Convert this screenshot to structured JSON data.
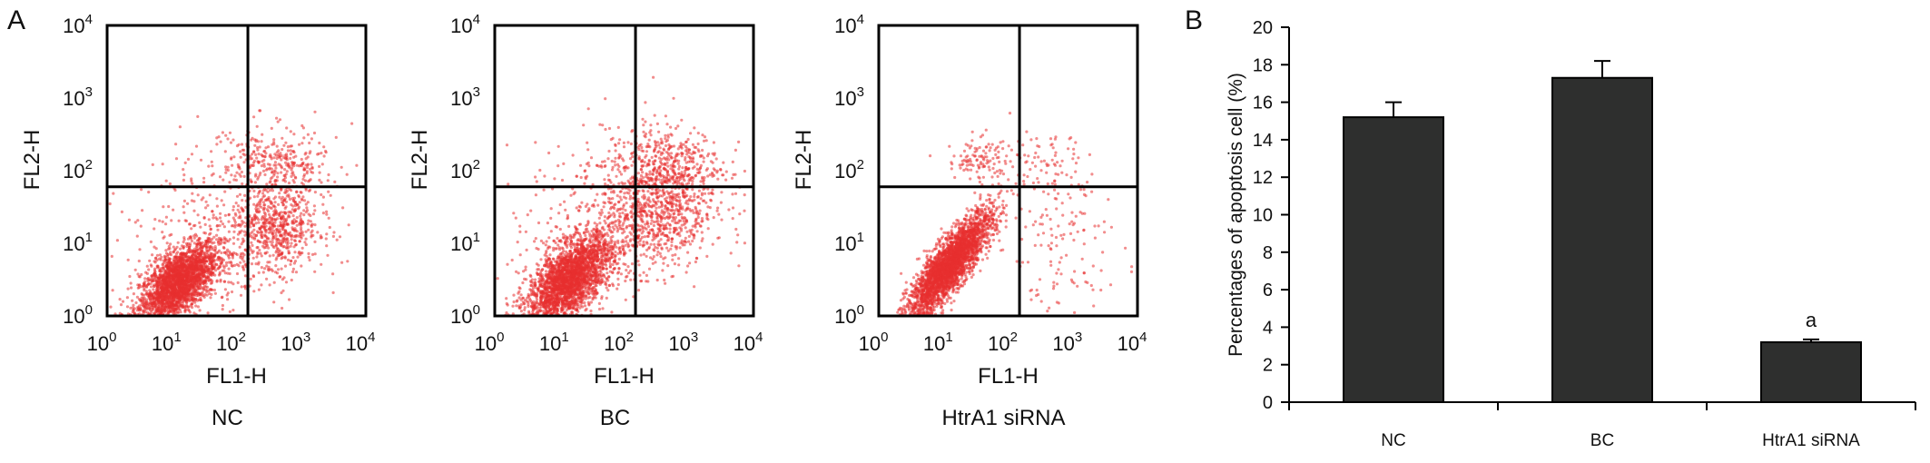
{
  "panel_labels": [
    "A",
    "B"
  ],
  "chart_data": [
    {
      "type": "scatter",
      "caption": "NC",
      "xlabel": "FL1-H",
      "ylabel": "FL2-H",
      "scale": "log",
      "xlim": [
        1,
        10000
      ],
      "ylim": [
        1,
        10000
      ],
      "tick_bases": [
        "10",
        "10",
        "10",
        "10",
        "10"
      ],
      "tick_exps": [
        "0",
        "1",
        "2",
        "3",
        "4"
      ],
      "quadrant_gate": {
        "x": 150,
        "y": 60
      },
      "point_color": "#e8302f",
      "clusters": [
        {
          "cx": 1.1,
          "cy": 0.45,
          "sx": 0.3,
          "sy": 0.28,
          "corr": 0.6,
          "n": 2600
        },
        {
          "cx": 2.6,
          "cy": 1.2,
          "sx": 0.35,
          "sy": 0.32,
          "corr": 0.1,
          "n": 650
        },
        {
          "cx": 2.6,
          "cy": 2.1,
          "sx": 0.4,
          "sy": 0.22,
          "corr": 0.0,
          "n": 260
        },
        {
          "cx": 1.8,
          "cy": 1.2,
          "sx": 0.8,
          "sy": 0.7,
          "corr": 0.3,
          "n": 400
        }
      ]
    },
    {
      "type": "scatter",
      "caption": "BC",
      "xlabel": "FL1-H",
      "ylabel": "FL2-H",
      "scale": "log",
      "xlim": [
        1,
        10000
      ],
      "ylim": [
        1,
        10000
      ],
      "tick_bases": [
        "10",
        "10",
        "10",
        "10",
        "10"
      ],
      "tick_exps": [
        "0",
        "1",
        "2",
        "3",
        "4"
      ],
      "quadrant_gate": {
        "x": 150,
        "y": 60
      },
      "point_color": "#e8302f",
      "clusters": [
        {
          "cx": 1.15,
          "cy": 0.5,
          "sx": 0.32,
          "sy": 0.3,
          "corr": 0.6,
          "n": 2600
        },
        {
          "cx": 2.5,
          "cy": 1.4,
          "sx": 0.45,
          "sy": 0.38,
          "corr": 0.1,
          "n": 750
        },
        {
          "cx": 2.6,
          "cy": 2.1,
          "sx": 0.45,
          "sy": 0.25,
          "corr": 0.0,
          "n": 380
        },
        {
          "cx": 1.8,
          "cy": 1.3,
          "sx": 0.8,
          "sy": 0.7,
          "corr": 0.3,
          "n": 400
        }
      ]
    },
    {
      "type": "scatter",
      "caption": "HtrA1 siRNA",
      "xlabel": "FL1-H",
      "ylabel": "FL2-H",
      "scale": "log",
      "xlim": [
        1,
        10000
      ],
      "ylim": [
        1,
        10000
      ],
      "tick_bases": [
        "10",
        "10",
        "10",
        "10",
        "10"
      ],
      "tick_exps": [
        "0",
        "1",
        "2",
        "3",
        "4"
      ],
      "quadrant_gate": {
        "x": 150,
        "y": 60
      },
      "point_color": "#e8302f",
      "clusters": [
        {
          "cx": 1.1,
          "cy": 0.7,
          "sx": 0.32,
          "sy": 0.36,
          "corr": 0.85,
          "n": 3000
        },
        {
          "cx": 1.55,
          "cy": 2.15,
          "sx": 0.25,
          "sy": 0.15,
          "corr": 0.0,
          "n": 110
        },
        {
          "cx": 2.8,
          "cy": 1.0,
          "sx": 0.5,
          "sy": 0.6,
          "corr": 0.0,
          "n": 150
        },
        {
          "cx": 2.5,
          "cy": 2.1,
          "sx": 0.4,
          "sy": 0.2,
          "corr": 0.0,
          "n": 70
        }
      ]
    },
    {
      "type": "bar",
      "categories": [
        "NC",
        "BC",
        "HtrA1 siRNA"
      ],
      "values": [
        15.2,
        17.3,
        3.2
      ],
      "errors": [
        0.8,
        0.9,
        0.15
      ],
      "annotations": [
        "",
        "",
        "a"
      ],
      "ylabel": "Percentages of apoptosis cell (%)",
      "ylim": [
        0,
        20
      ],
      "yticks": [
        0,
        2,
        4,
        6,
        8,
        10,
        12,
        14,
        16,
        18,
        20
      ],
      "bar_color": "#2e2f2e"
    }
  ]
}
